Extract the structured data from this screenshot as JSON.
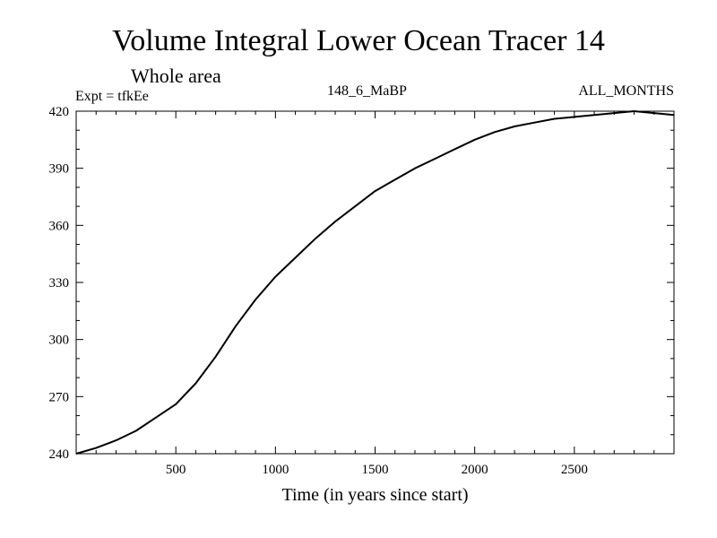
{
  "header": {
    "title": "Volume Integral Lower Ocean Tracer 14",
    "subtitle": "Whole area",
    "experiment": "Expt = tfkEe",
    "period": "148_6_MaBP",
    "months": "ALL_MONTHS"
  },
  "chart_data": {
    "type": "line",
    "title": "Volume Integral Lower Ocean Tracer 14",
    "subtitle": "Whole area",
    "xlabel": "Time (in years since start)",
    "ylabel": "",
    "xlim": [
      0,
      3000
    ],
    "ylim": [
      240,
      420
    ],
    "xticks": [
      500,
      1000,
      1500,
      2000,
      2500
    ],
    "yticks": [
      240,
      270,
      300,
      330,
      360,
      390,
      420
    ],
    "grid": false,
    "line_color": "#000000",
    "series": [
      {
        "x": [
          0,
          100,
          200,
          300,
          400,
          500,
          600,
          700,
          800,
          900,
          1000,
          1100,
          1200,
          1300,
          1400,
          1500,
          1600,
          1700,
          1800,
          1900,
          2000,
          2100,
          2200,
          2300,
          2400,
          2500,
          2600,
          2700,
          2800,
          2900,
          3000
        ],
        "values": [
          240,
          243,
          247,
          252,
          259,
          266,
          277,
          291,
          307,
          321,
          333,
          343,
          353,
          362,
          370,
          378,
          384,
          390,
          395,
          400,
          405,
          409,
          412,
          414,
          416,
          417,
          418,
          419,
          420,
          419,
          418
        ]
      }
    ]
  }
}
